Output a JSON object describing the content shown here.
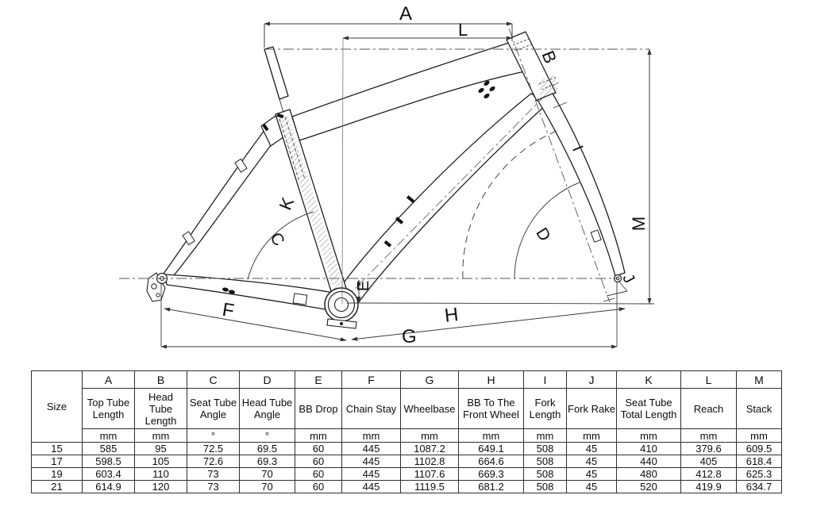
{
  "diagram": {
    "labels": {
      "a": "A",
      "b": "B",
      "c": "C",
      "d": "D",
      "e": "E",
      "f": "F",
      "g": "G",
      "h": "H",
      "i": "I",
      "j": "J",
      "k": "K",
      "l": "L",
      "m": "M"
    }
  },
  "table": {
    "size_header": "Size",
    "columns": [
      {
        "letter": "A",
        "name": "Top Tube Length",
        "unit": "mm"
      },
      {
        "letter": "B",
        "name": "Head Tube Length",
        "unit": "mm"
      },
      {
        "letter": "C",
        "name": "Seat Tube Angle",
        "unit": "°"
      },
      {
        "letter": "D",
        "name": "Head Tube Angle",
        "unit": "°"
      },
      {
        "letter": "E",
        "name": "BB Drop",
        "unit": "mm"
      },
      {
        "letter": "F",
        "name": "Chain Stay",
        "unit": "mm"
      },
      {
        "letter": "G",
        "name": "Wheelbase",
        "unit": "mm"
      },
      {
        "letter": "H",
        "name": "BB To The Front Wheel",
        "unit": "mm"
      },
      {
        "letter": "I",
        "name": "Fork Length",
        "unit": "mm"
      },
      {
        "letter": "J",
        "name": "Fork Rake",
        "unit": "mm"
      },
      {
        "letter": "K",
        "name": "Seat Tube Total Length",
        "unit": "mm"
      },
      {
        "letter": "L",
        "name": "Reach",
        "unit": "mm"
      },
      {
        "letter": "M",
        "name": "Stack",
        "unit": "mm"
      }
    ],
    "rows": [
      {
        "size": "15",
        "values": [
          "585",
          "95",
          "72.5",
          "69.5",
          "60",
          "445",
          "1087.2",
          "649.1",
          "508",
          "45",
          "410",
          "379.6",
          "609.5"
        ]
      },
      {
        "size": "17",
        "values": [
          "598.5",
          "105",
          "72.6",
          "69.3",
          "60",
          "445",
          "1102.8",
          "664.6",
          "508",
          "45",
          "440",
          "405",
          "618.4"
        ]
      },
      {
        "size": "19",
        "values": [
          "603.4",
          "110",
          "73",
          "70",
          "60",
          "445",
          "1107.6",
          "669.3",
          "508",
          "45",
          "480",
          "412.8",
          "625.3"
        ]
      },
      {
        "size": "21",
        "values": [
          "614.9",
          "120",
          "73",
          "70",
          "60",
          "445",
          "1119.5",
          "681.2",
          "508",
          "45",
          "520",
          "419.9",
          "634.7"
        ]
      }
    ]
  }
}
